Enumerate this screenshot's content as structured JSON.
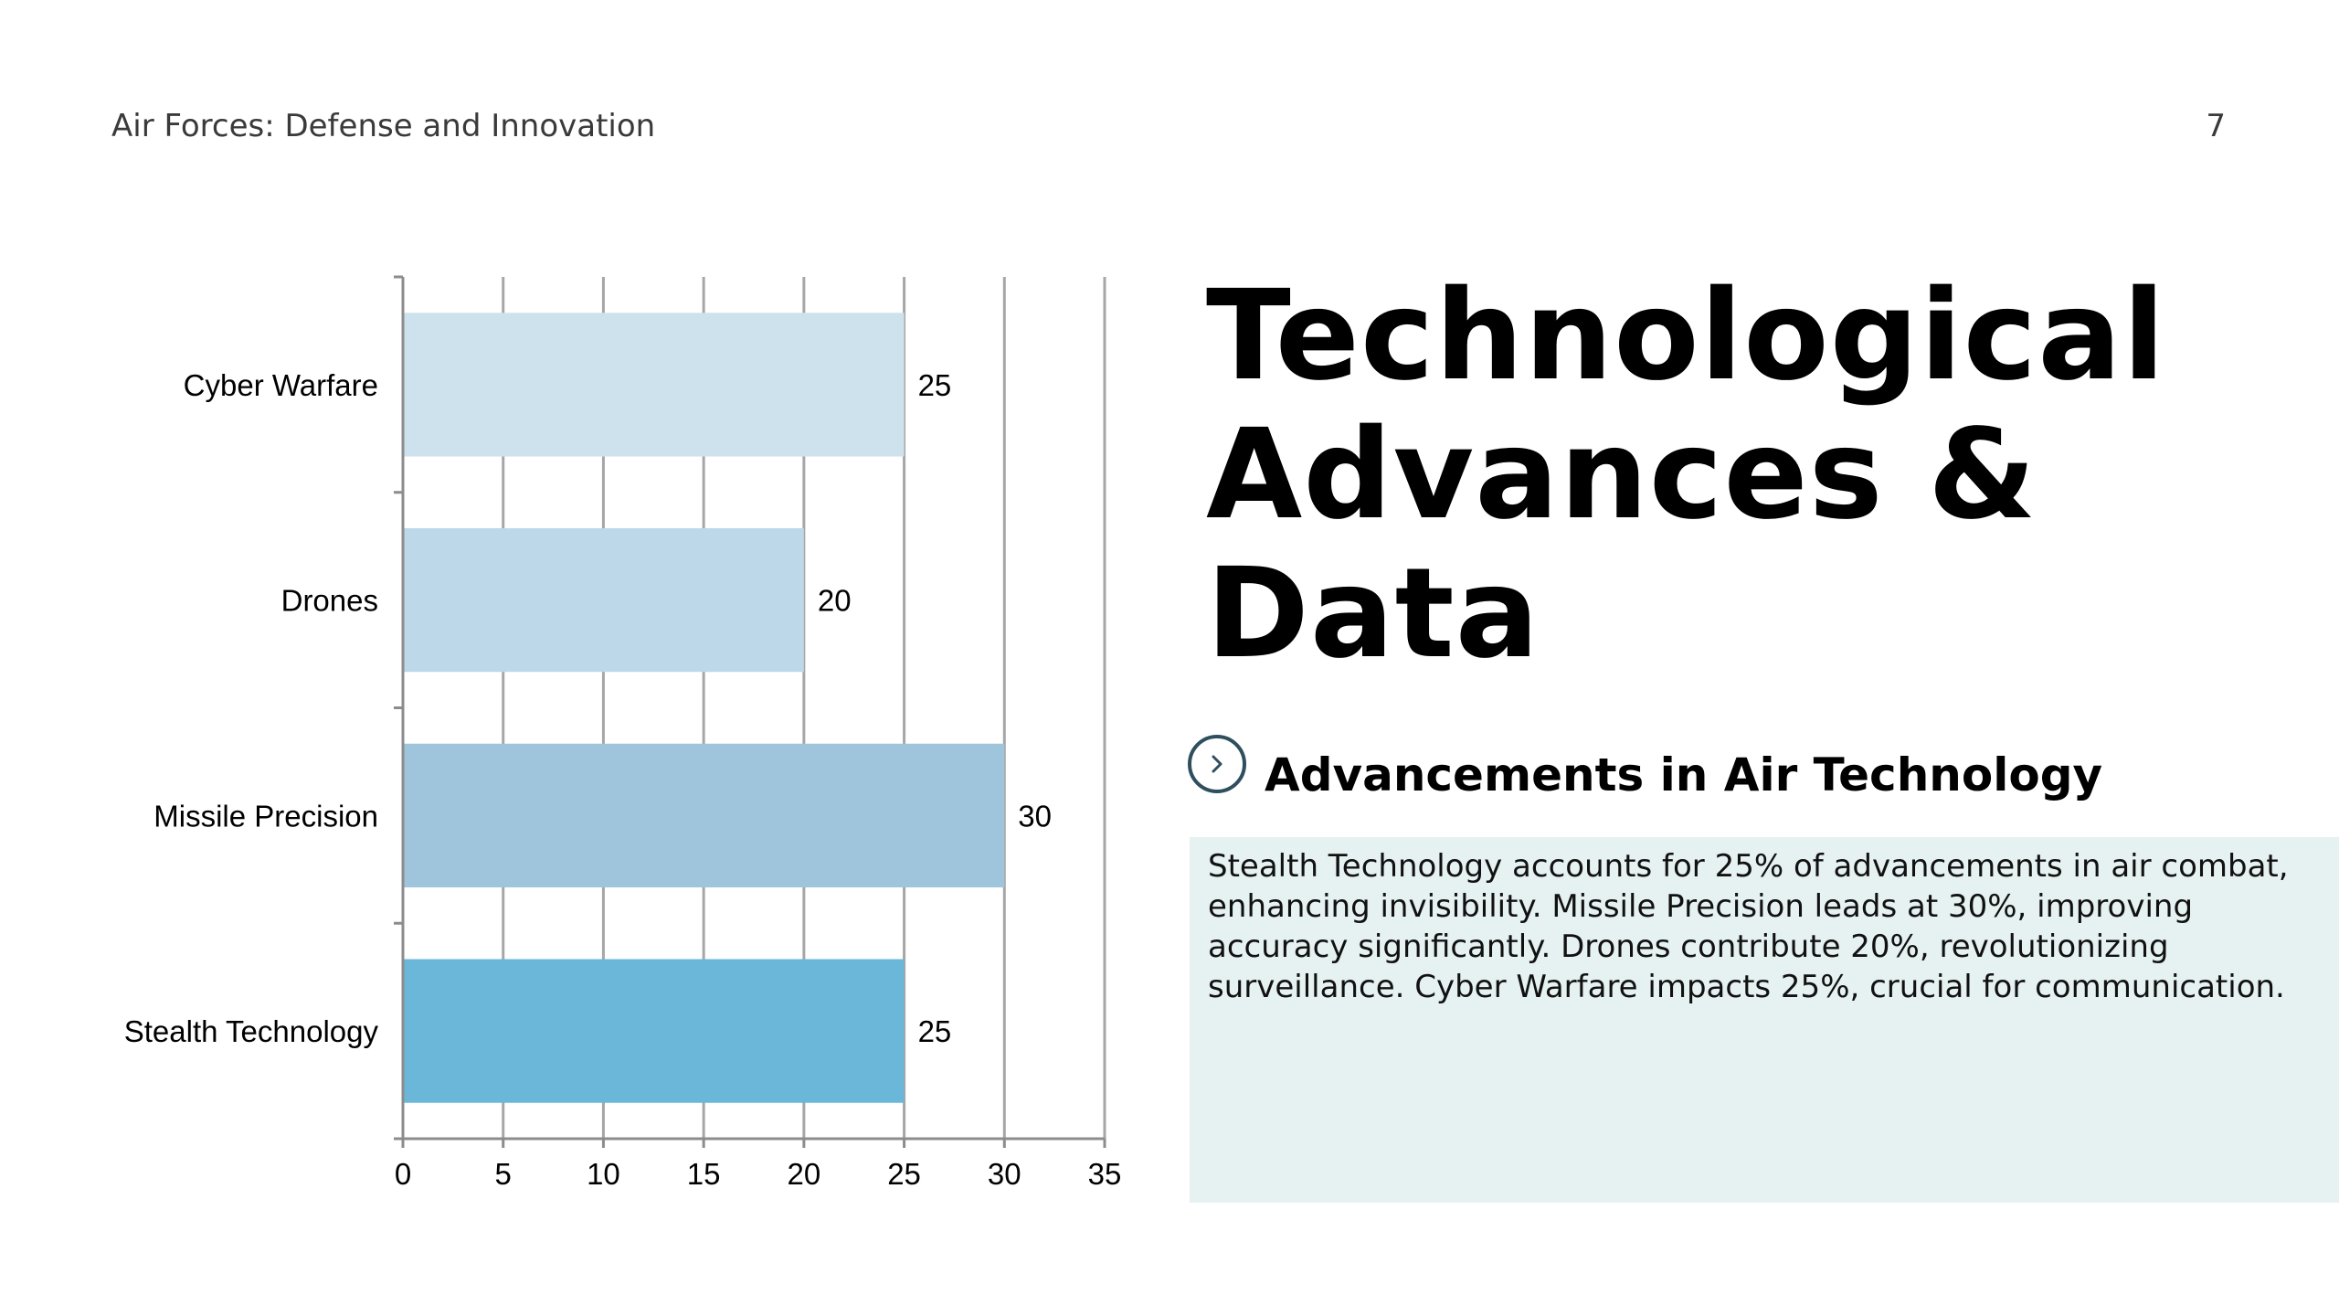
{
  "header": {
    "title": "Air Forces: Defense and Innovation",
    "page_number": "7"
  },
  "main": {
    "title": "Technological Advances & Data",
    "subheading": "Advancements in Air Technology",
    "body": "Stealth Technology accounts for 25% of advancements in air combat, enhancing invisibility. Missile Precision leads at 30%, improving accuracy significantly. Drones contribute 20%, revolutionizing surveillance. Cyber Warfare impacts 25%, crucial for communication."
  },
  "icons": {
    "subheading_icon": "chevron-right-icon"
  },
  "chart_data": {
    "type": "bar",
    "orientation": "horizontal",
    "categories": [
      "Cyber Warfare",
      "Drones",
      "Missile Precision",
      "Stealth Technology"
    ],
    "values": [
      25,
      20,
      30,
      25
    ],
    "colors": [
      "#cde2ec",
      "#bdd8e8",
      "#9fc5dc",
      "#6ab7da"
    ],
    "xlim": [
      0,
      35
    ],
    "xticks": [
      0,
      5,
      10,
      15,
      20,
      25,
      30,
      35
    ],
    "grid": true,
    "title": "",
    "xlabel": "",
    "ylabel": "",
    "data_labels": true,
    "gridline_color": "#a6a6a6",
    "axis_color": "#8c8c8c"
  }
}
